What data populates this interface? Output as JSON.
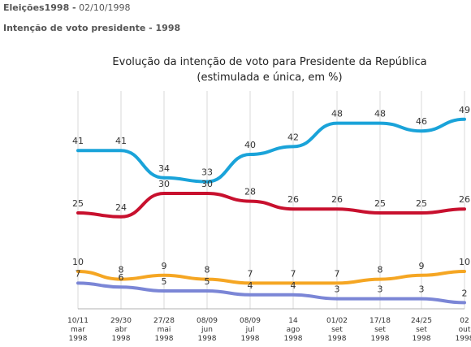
{
  "header": {
    "section": "Eleições1998 -",
    "date": "02/10/1998",
    "subtitle": "Intenção de voto presidente - 1998"
  },
  "chart_data": {
    "type": "line",
    "title": "Evolução da intenção de voto para Presidente da República",
    "subtitle": "(estimulada e única, em %)",
    "xlabel": "",
    "ylabel": "",
    "ylim": [
      0,
      55
    ],
    "grid": "vertical",
    "categories": [
      [
        "10/11",
        "mar",
        "1998"
      ],
      [
        "29/30",
        "abr",
        "1998"
      ],
      [
        "27/28",
        "mai",
        "1998"
      ],
      [
        "08/09",
        "jun",
        "1998"
      ],
      [
        "08/09",
        "jul",
        "1998"
      ],
      [
        "14",
        "ago",
        "1998"
      ],
      [
        "01/02",
        "set",
        "1998"
      ],
      [
        "17/18",
        "set",
        "1998"
      ],
      [
        "24/25",
        "set",
        "1998"
      ],
      [
        "02",
        "out",
        "1998"
      ]
    ],
    "series": [
      {
        "color": "#1aa3d9",
        "values": [
          41,
          41,
          34,
          33,
          40,
          42,
          48,
          48,
          46,
          49
        ]
      },
      {
        "color": "#c8102e",
        "values": [
          25,
          24,
          30,
          30,
          28,
          26,
          26,
          25,
          25,
          26
        ]
      },
      {
        "color": "#f5a623",
        "values": [
          10,
          8,
          9,
          8,
          7,
          7,
          7,
          8,
          9,
          10
        ]
      },
      {
        "color": "#7b86d6",
        "values": [
          7,
          6,
          5,
          5,
          4,
          4,
          3,
          3,
          3,
          2
        ]
      }
    ]
  }
}
